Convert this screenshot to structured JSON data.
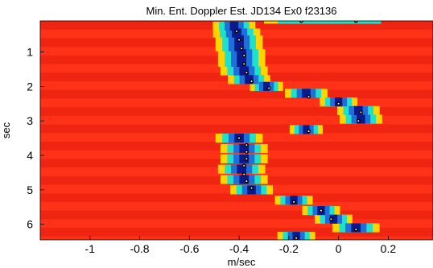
{
  "chart_data": {
    "type": "heatmap",
    "title": "Min. Ent. Doppler Est. JD134 Ex0 f23136",
    "xlabel": "m/sec",
    "ylabel": "sec",
    "xlim": [
      -1.2,
      0.38
    ],
    "ylim": [
      0.1,
      6.45
    ],
    "y_inverted": true,
    "grid": false,
    "colormap": "jet",
    "x_ticks": [
      -1,
      -0.8,
      -0.6,
      -0.4,
      -0.2,
      0,
      0.2
    ],
    "x_tick_labels": [
      "-1",
      "-0.8",
      "-0.6",
      "-0.4",
      "-0.2",
      "0",
      "0.2"
    ],
    "y_ticks": [
      1,
      2,
      3,
      4,
      5,
      6
    ],
    "y_tick_labels": [
      "1",
      "2",
      "3",
      "4",
      "5",
      "6"
    ],
    "ridge": [
      {
        "t": 0.25,
        "v": -0.42,
        "w": 0.09
      },
      {
        "t": 0.45,
        "v": -0.41,
        "w": 0.1
      },
      {
        "t": 0.65,
        "v": -0.4,
        "w": 0.1
      },
      {
        "t": 0.85,
        "v": -0.4,
        "w": 0.1
      },
      {
        "t": 1.05,
        "v": -0.39,
        "w": 0.1
      },
      {
        "t": 1.3,
        "v": -0.39,
        "w": 0.1
      },
      {
        "t": 1.55,
        "v": -0.38,
        "w": 0.1
      },
      {
        "t": 1.8,
        "v": -0.36,
        "w": 0.09
      },
      {
        "t": 2.0,
        "v": -0.29,
        "w": 0.07
      },
      {
        "t": 2.2,
        "v": -0.13,
        "w": 0.09
      },
      {
        "t": 2.45,
        "v": 0.0,
        "w": 0.08
      },
      {
        "t": 2.7,
        "v": 0.08,
        "w": 0.09
      },
      {
        "t": 2.95,
        "v": 0.09,
        "w": 0.09
      },
      {
        "t": 3.25,
        "v": -0.13,
        "w": 0.07
      },
      {
        "t": 3.5,
        "v": -0.4,
        "w": 0.1
      },
      {
        "t": 3.8,
        "v": -0.38,
        "w": 0.1
      },
      {
        "t": 4.1,
        "v": -0.38,
        "w": 0.1
      },
      {
        "t": 4.4,
        "v": -0.39,
        "w": 0.1
      },
      {
        "t": 4.7,
        "v": -0.38,
        "w": 0.1
      },
      {
        "t": 5.0,
        "v": -0.35,
        "w": 0.09
      },
      {
        "t": 5.3,
        "v": -0.18,
        "w": 0.08
      },
      {
        "t": 5.6,
        "v": -0.07,
        "w": 0.08
      },
      {
        "t": 5.85,
        "v": -0.02,
        "w": 0.08
      },
      {
        "t": 6.1,
        "v": 0.07,
        "w": 0.1
      },
      {
        "t": 6.35,
        "v": -0.17,
        "w": 0.08
      }
    ],
    "top_streak": {
      "t": 0.1,
      "v": -0.1,
      "w": 0.15
    },
    "points": [
      {
        "t": 0.1,
        "v": -0.15
      },
      {
        "t": 0.1,
        "v": 0.07
      },
      {
        "t": 0.4,
        "v": -0.41
      },
      {
        "t": 0.65,
        "v": -0.4
      },
      {
        "t": 0.9,
        "v": -0.39
      },
      {
        "t": 1.1,
        "v": -0.38
      },
      {
        "t": 1.35,
        "v": -0.38
      },
      {
        "t": 1.6,
        "v": -0.37
      },
      {
        "t": 1.85,
        "v": -0.35
      },
      {
        "t": 2.05,
        "v": -0.28
      },
      {
        "t": 2.3,
        "v": -0.12
      },
      {
        "t": 2.5,
        "v": 0.0
      },
      {
        "t": 2.75,
        "v": 0.09
      },
      {
        "t": 3.0,
        "v": 0.08
      },
      {
        "t": 3.3,
        "v": -0.12
      },
      {
        "t": 3.5,
        "v": -0.4
      },
      {
        "t": 3.7,
        "v": -0.37
      },
      {
        "t": 3.9,
        "v": -0.37
      },
      {
        "t": 4.1,
        "v": -0.37
      },
      {
        "t": 4.3,
        "v": -0.38
      },
      {
        "t": 4.55,
        "v": -0.38
      },
      {
        "t": 4.75,
        "v": -0.37
      },
      {
        "t": 4.95,
        "v": -0.35
      },
      {
        "t": 5.35,
        "v": -0.18
      },
      {
        "t": 5.6,
        "v": -0.07
      },
      {
        "t": 5.85,
        "v": -0.03
      },
      {
        "t": 6.15,
        "v": 0.07
      },
      {
        "t": 6.4,
        "v": -0.17
      }
    ],
    "colors": {
      "background": "#ff2a14",
      "ridge_outer": "#ffd400",
      "ridge_mid": "#1fe0c8",
      "ridge_inner": "#1e6fd9",
      "ridge_core": "#0a1a8a"
    }
  }
}
